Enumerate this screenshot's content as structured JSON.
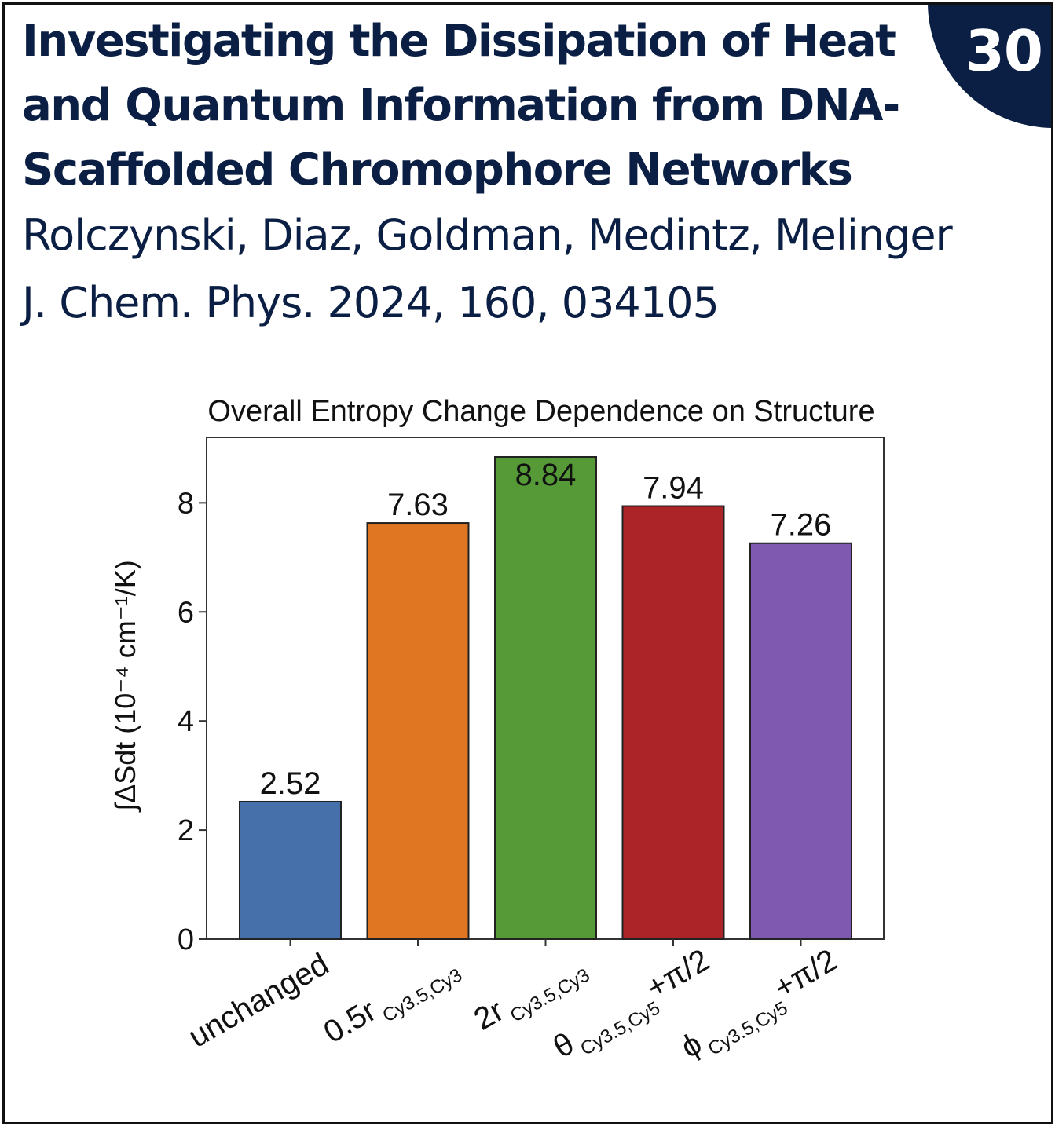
{
  "header": {
    "title": "Investigating the Dissipation of Heat and Quantum Information from DNA-Scaffolded Chromophore Networks",
    "authors": "Rolczynski, Diaz, Goldman, Medintz, Melinger",
    "citation": "J. Chem. Phys. 2024, 160, 034105",
    "badge": "30"
  },
  "chart_data": {
    "type": "bar",
    "title": "Overall Entropy Change Dependence on Structure",
    "ylabel": "∫ΔSdt (10⁻⁴ cm⁻¹/K)",
    "categories": [
      {
        "base": "unchanged",
        "sub": "",
        "suffix": ""
      },
      {
        "base": "0.5r",
        "sub": "Cy3.5,Cy3",
        "suffix": ""
      },
      {
        "base": "2r",
        "sub": "Cy3.5,Cy3",
        "suffix": ""
      },
      {
        "base": "θ",
        "sub": "Cy3.5,Cy5",
        "suffix": "+π/2"
      },
      {
        "base": "ϕ",
        "sub": "Cy3.5,Cy5",
        "suffix": "+π/2"
      }
    ],
    "values": [
      2.52,
      7.63,
      8.84,
      7.94,
      7.26
    ],
    "value_labels": [
      "2.52",
      "7.63",
      "8.84",
      "7.94",
      "7.26"
    ],
    "colors": [
      "#4570aa",
      "#e07622",
      "#559a36",
      "#ac2428",
      "#7f58af"
    ],
    "ylim": [
      0,
      9.2
    ],
    "yticks": [
      0,
      2,
      4,
      6,
      8
    ],
    "grid": false,
    "legend": "none"
  }
}
